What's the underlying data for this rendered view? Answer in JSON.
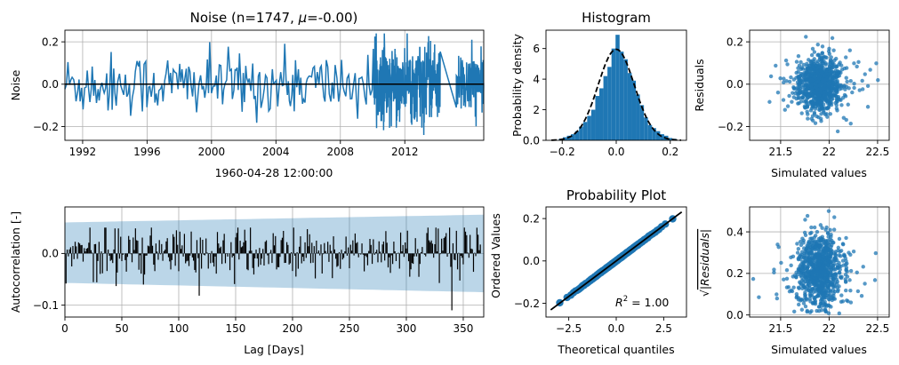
{
  "chart_data": [
    {
      "id": "noise",
      "type": "line",
      "title": "Noise (n=1747, μ=-0.00)",
      "title_parts": {
        "main": "Noise (n=1747, ",
        "mu": "μ",
        "rest": "=-0.00)"
      },
      "ylabel": "Noise",
      "xlabel": "1960-04-28 12:00:00",
      "xlim": [
        1990.9,
        2016.9
      ],
      "ylim": [
        -0.265,
        0.255
      ],
      "xticks": [
        1992,
        1996,
        2000,
        2004,
        2008,
        2012
      ],
      "yticks": [
        -0.2,
        0.0,
        0.2
      ],
      "ytick_labels": [
        "−0.2",
        "0.0",
        "0.2"
      ],
      "grid": true,
      "series": [
        {
          "color": "#1f77b4",
          "n": 1747,
          "mean": 0.0
        }
      ],
      "zero_line_color": "#000000"
    },
    {
      "id": "histogram",
      "type": "bar",
      "title": "Histogram",
      "ylabel": "Probability density",
      "xlim": [
        -0.26,
        0.26
      ],
      "ylim": [
        0,
        7.2
      ],
      "xticks": [
        -0.2,
        0.0,
        0.2
      ],
      "xtick_labels": [
        "−0.2",
        "0.0",
        "0.2"
      ],
      "yticks": [
        0,
        2,
        4,
        6
      ],
      "bin_centers": [
        -0.205,
        -0.19,
        -0.175,
        -0.16,
        -0.145,
        -0.13,
        -0.115,
        -0.1,
        -0.085,
        -0.07,
        -0.055,
        -0.04,
        -0.025,
        -0.01,
        0.005,
        0.02,
        0.035,
        0.05,
        0.065,
        0.08,
        0.095,
        0.11,
        0.125,
        0.14,
        0.155,
        0.17,
        0.185,
        0.2,
        0.215
      ],
      "densities": [
        0.1,
        0.2,
        0.3,
        0.4,
        0.6,
        0.9,
        1.2,
        1.6,
        2.0,
        2.9,
        3.4,
        4.2,
        4.8,
        6.0,
        6.9,
        5.8,
        5.3,
        4.4,
        3.9,
        3.0,
        2.3,
        1.5,
        1.0,
        0.8,
        0.6,
        0.4,
        0.3,
        0.15,
        0.1
      ],
      "normal_fit": {
        "mean": 0.0,
        "std": 0.067,
        "style": "dashed",
        "color": "#000000"
      },
      "color": "#1f77b4"
    },
    {
      "id": "residuals",
      "type": "scatter",
      "ylabel": "Residuals",
      "xlabel": "Simulated values",
      "xlim": [
        21.18,
        22.62
      ],
      "ylim": [
        -0.265,
        0.255
      ],
      "xticks": [
        21.5,
        22.0,
        22.5
      ],
      "yticks": [
        -0.2,
        0.0,
        0.2
      ],
      "ytick_labels": [
        "−0.2",
        "0.0",
        "0.2"
      ],
      "grid": true,
      "color": "#1f77b4",
      "center": {
        "x": 21.9,
        "y": 0.0
      },
      "spread": {
        "x": 0.11,
        "y": 0.067
      }
    },
    {
      "id": "autocorrelation",
      "type": "bar",
      "ylabel": "Autocorrelation [-]",
      "xlabel": "Lag [Days]",
      "xlim": [
        0,
        368
      ],
      "ylim": [
        -0.123,
        0.09
      ],
      "xticks": [
        0,
        50,
        100,
        150,
        200,
        250,
        300,
        350
      ],
      "yticks": [
        -0.1,
        0.0
      ],
      "ytick_labels": [
        "−0.1",
        "0.0"
      ],
      "grid": true,
      "bar_color": "#000000",
      "confidence_band": {
        "color": "#1f77b4",
        "opacity": 0.3,
        "upper_start": 0.06,
        "upper_end": 0.075,
        "lower_start": -0.057,
        "lower_end": -0.075
      }
    },
    {
      "id": "probability_plot",
      "type": "scatter",
      "title": "Probability Plot",
      "ylabel": "Ordered Values",
      "xlabel": "Theoretical quantiles",
      "xlim": [
        -3.7,
        3.7
      ],
      "ylim": [
        -0.265,
        0.255
      ],
      "xticks": [
        -2.5,
        0.0,
        2.5
      ],
      "xtick_labels": [
        "−2.5",
        "0.0",
        "2.5"
      ],
      "yticks": [
        -0.2,
        0.0,
        0.2
      ],
      "ytick_labels": [
        "−0.2",
        "0.0",
        "0.2"
      ],
      "annotation": {
        "base": "R",
        "sup": "2",
        "text": " = 1.00"
      },
      "fit_line": {
        "slope": 0.067,
        "intercept": 0.0,
        "color": "#000000"
      },
      "color": "#1f77b4"
    },
    {
      "id": "sqrt_residuals",
      "type": "scatter",
      "ylabel": "√|Residuals|",
      "ylabel_parts": {
        "root": "√",
        "inner": "|Residuals|"
      },
      "xlabel": "Simulated values",
      "xlim": [
        21.18,
        22.62
      ],
      "ylim": [
        -0.01,
        0.52
      ],
      "xticks": [
        21.5,
        22.0,
        22.5
      ],
      "yticks": [
        0.0,
        0.2,
        0.4
      ],
      "grid": true,
      "color": "#1f77b4"
    }
  ]
}
